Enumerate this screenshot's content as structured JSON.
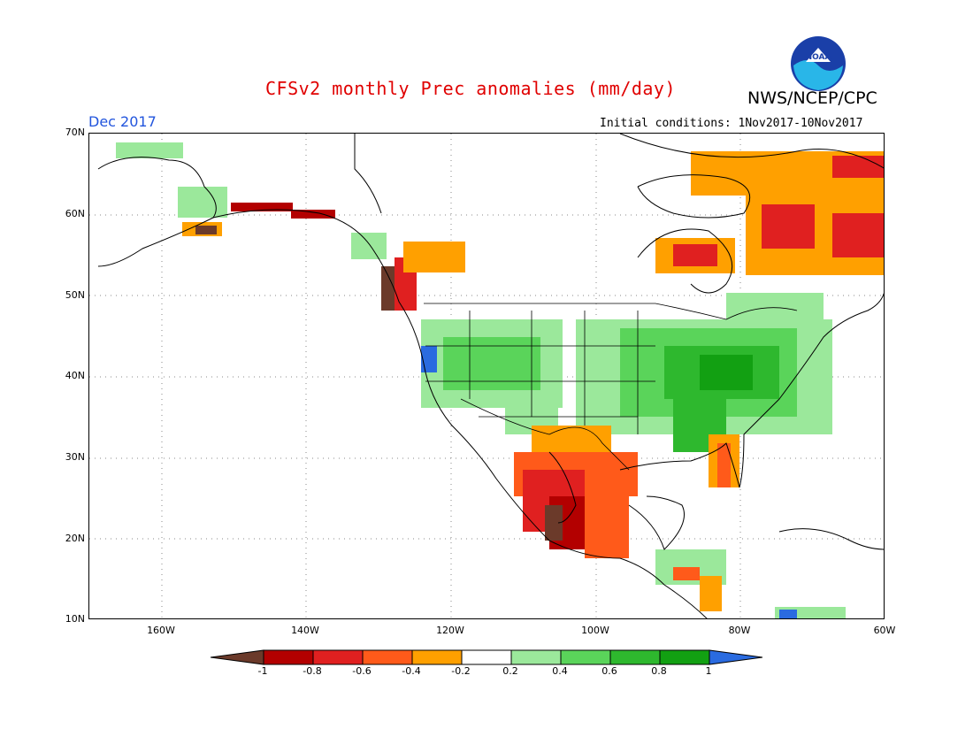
{
  "title": "CFSv2 monthly Prec anomalies (mm/day)",
  "organization": "NWS/NCEP/CPC",
  "logo_text": "NOAA",
  "valid_month": "Dec 2017",
  "initial_conditions": "Initial conditions: 1Nov2017-10Nov2017",
  "lat_ticks": [
    "70N",
    "60N",
    "50N",
    "40N",
    "30N",
    "20N",
    "10N"
  ],
  "lon_ticks": [
    "160W",
    "140W",
    "120W",
    "100W",
    "80W",
    "60W"
  ],
  "colorbar": {
    "labels": [
      "-1",
      "-0.8",
      "-0.6",
      "-0.4",
      "-0.2",
      "0.2",
      "0.4",
      "0.6",
      "0.8",
      "1"
    ],
    "colors": [
      "#6b3a2a",
      "#b30000",
      "#e02020",
      "#ff5a1a",
      "#ffa000",
      "#ffffff",
      "#9be89b",
      "#5ad45a",
      "#2eb82e",
      "#12a012",
      "#2a6be0"
    ]
  }
}
